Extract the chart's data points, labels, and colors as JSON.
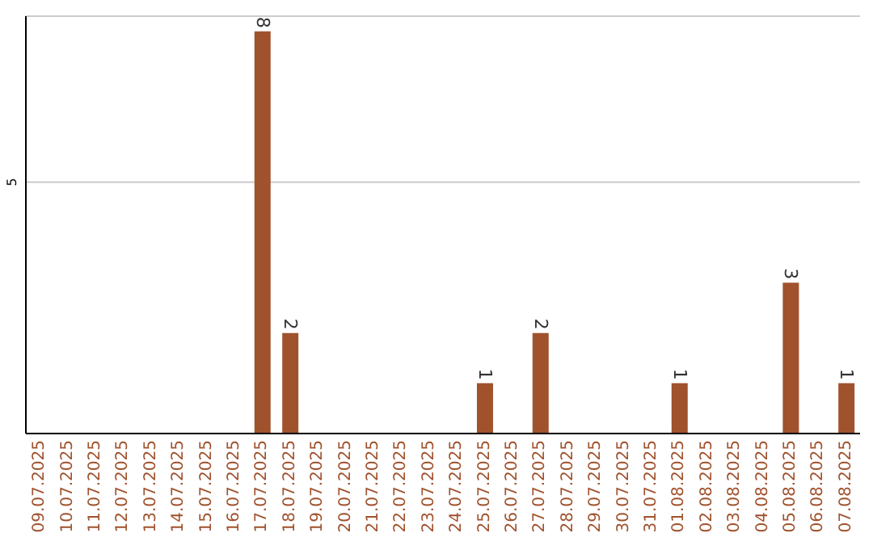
{
  "chart_data": {
    "type": "bar",
    "categories": [
      "09.07.2025",
      "10.07.2025",
      "11.07.2025",
      "12.07.2025",
      "13.07.2025",
      "14.07.2025",
      "15.07.2025",
      "16.07.2025",
      "17.07.2025",
      "18.07.2025",
      "19.07.2025",
      "20.07.2025",
      "21.07.2025",
      "22.07.2025",
      "23.07.2025",
      "24.07.2025",
      "25.07.2025",
      "26.07.2025",
      "27.07.2025",
      "28.07.2025",
      "29.07.2025",
      "30.07.2025",
      "31.07.2025",
      "01.08.2025",
      "02.08.2025",
      "03.08.2025",
      "04.08.2025",
      "05.08.2025",
      "06.08.2025",
      "07.08.2025"
    ],
    "values": [
      0,
      0,
      0,
      0,
      0,
      0,
      0,
      0,
      8,
      2,
      0,
      0,
      0,
      0,
      0,
      0,
      1,
      0,
      2,
      0,
      0,
      0,
      0,
      1,
      0,
      0,
      0,
      3,
      0,
      1
    ],
    "value_labels": [
      null,
      null,
      null,
      null,
      null,
      null,
      null,
      null,
      "8",
      "2",
      null,
      null,
      null,
      null,
      null,
      null,
      "1",
      null,
      "2",
      null,
      null,
      null,
      null,
      "1",
      null,
      null,
      null,
      "3",
      null,
      "1"
    ],
    "color": "#a0522d",
    "ylim": [
      0,
      8.3
    ],
    "yticks": [
      5
    ],
    "grid": "y"
  }
}
